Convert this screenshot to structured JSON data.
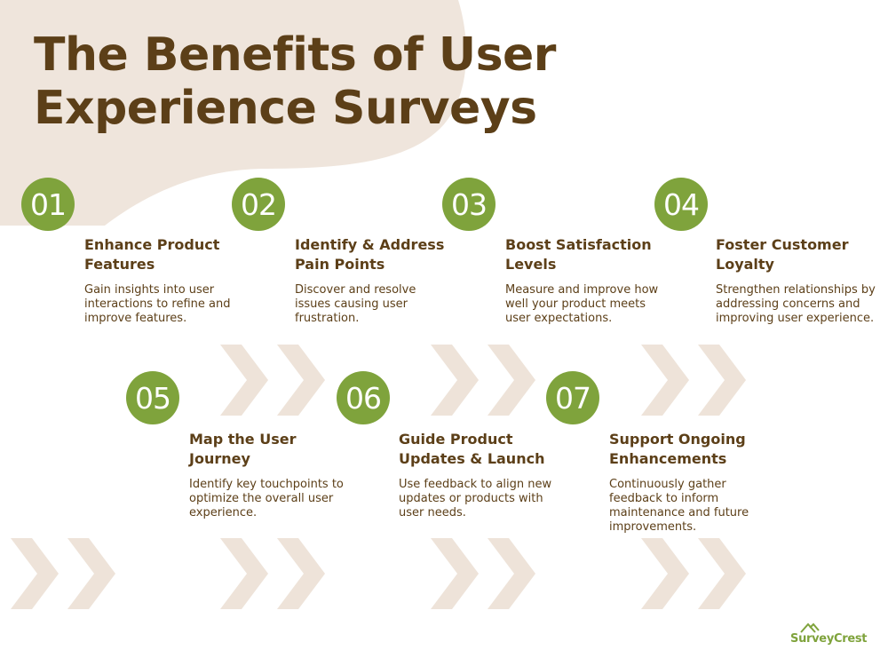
{
  "title": {
    "line1": "The Benefits of User",
    "line2": "Experience Surveys"
  },
  "colors": {
    "accent_green": "#7fa33c",
    "text_brown": "#5c3f18",
    "blob_beige": "#efe5dc",
    "chevron_beige": "#eee3d9"
  },
  "steps": [
    {
      "number": "01",
      "title": "Enhance Product Features",
      "desc": "Gain insights into user interactions to refine and improve features."
    },
    {
      "number": "02",
      "title": "Identify & Address Pain Points",
      "desc": "Discover and resolve issues causing user frustration."
    },
    {
      "number": "03",
      "title": "Boost Satisfaction Levels",
      "desc": "Measure and improve how well your product meets user expectations."
    },
    {
      "number": "04",
      "title": "Foster Customer Loyalty",
      "desc": "Strengthen relationships by addressing concerns and improving user experience."
    },
    {
      "number": "05",
      "title": "Map the User Journey",
      "desc": "Identify key touchpoints to optimize the overall user experience."
    },
    {
      "number": "06",
      "title": "Guide Product Updates & Launch",
      "desc": "Use feedback to align new updates or products with user needs."
    },
    {
      "number": "07",
      "title": "Support Ongoing Enhancements",
      "desc": "Continuously gather feedback to inform maintenance and future improvements."
    }
  ],
  "logo": {
    "text": "SurveyCrest",
    "icon": "mountain-icon"
  },
  "decor": {
    "chevron_icon": "double-chevron-right-icon"
  }
}
